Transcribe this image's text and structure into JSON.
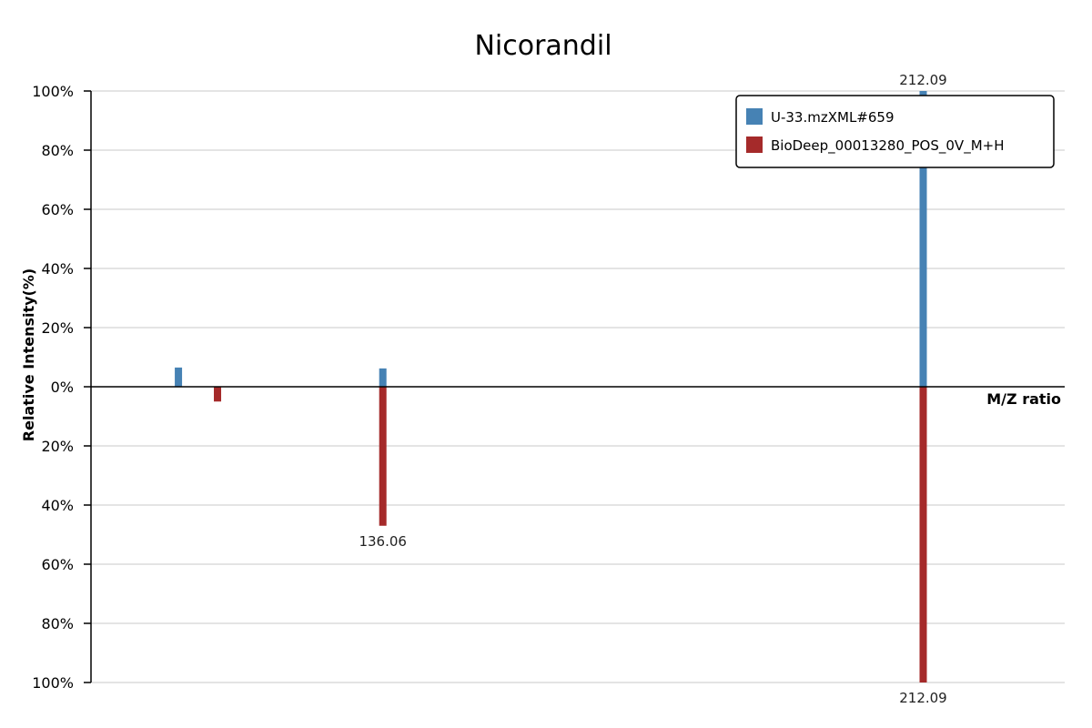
{
  "chart_data": {
    "type": "bar",
    "title": "Nicorandil",
    "xlabel": "M/Z ratio",
    "ylabel": "Relative Intensity(%)",
    "mz_range": [
      95,
      232
    ],
    "ylim": [
      -100,
      100
    ],
    "y_ticks": [
      {
        "value": 100,
        "label": "100%"
      },
      {
        "value": 80,
        "label": "80%"
      },
      {
        "value": 60,
        "label": "60%"
      },
      {
        "value": 40,
        "label": "40%"
      },
      {
        "value": 20,
        "label": "20%"
      },
      {
        "value": 0,
        "label": "0%"
      },
      {
        "value": -20,
        "label": "20%"
      },
      {
        "value": -40,
        "label": "40%"
      },
      {
        "value": -60,
        "label": "60%"
      },
      {
        "value": -80,
        "label": "80%"
      },
      {
        "value": -100,
        "label": "100%"
      }
    ],
    "grid": true,
    "legend_position": "top-right",
    "series": [
      {
        "name": "U-33.mzXML#659",
        "color": "#4682b4",
        "direction": "up",
        "peaks": [
          {
            "mz": 107.3,
            "intensity": 6.5,
            "label": ""
          },
          {
            "mz": 136.06,
            "intensity": 6.2,
            "label": ""
          },
          {
            "mz": 212.09,
            "intensity": 100,
            "label": "212.09"
          }
        ]
      },
      {
        "name": "BioDeep_00013280_POS_0V_M+H",
        "color": "#a52a2a",
        "direction": "down",
        "peaks": [
          {
            "mz": 112.8,
            "intensity": 5,
            "label": ""
          },
          {
            "mz": 136.06,
            "intensity": 47,
            "label": "136.06"
          },
          {
            "mz": 212.09,
            "intensity": 100,
            "label": "212.09"
          }
        ]
      }
    ]
  }
}
